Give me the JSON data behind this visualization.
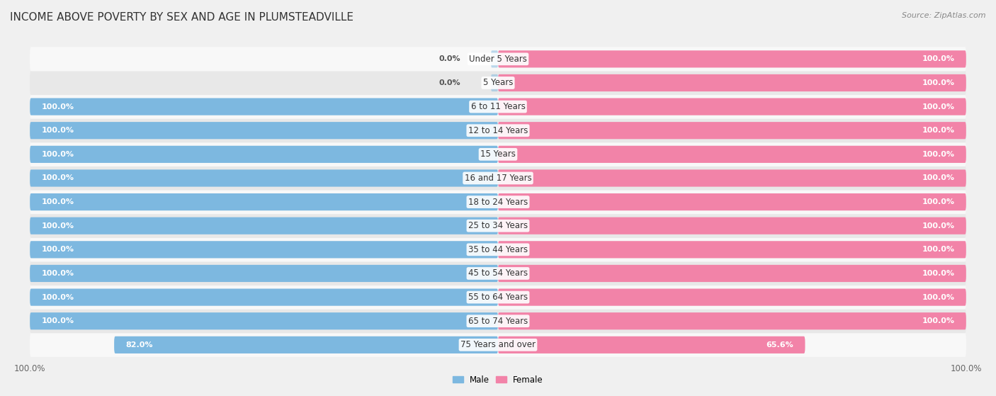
{
  "title": "INCOME ABOVE POVERTY BY SEX AND AGE IN PLUMSTEADVILLE",
  "source": "Source: ZipAtlas.com",
  "categories": [
    "Under 5 Years",
    "5 Years",
    "6 to 11 Years",
    "12 to 14 Years",
    "15 Years",
    "16 and 17 Years",
    "18 to 24 Years",
    "25 to 34 Years",
    "35 to 44 Years",
    "45 to 54 Years",
    "55 to 64 Years",
    "65 to 74 Years",
    "75 Years and over"
  ],
  "male_values": [
    0.0,
    0.0,
    100.0,
    100.0,
    100.0,
    100.0,
    100.0,
    100.0,
    100.0,
    100.0,
    100.0,
    100.0,
    82.0
  ],
  "female_values": [
    100.0,
    100.0,
    100.0,
    100.0,
    100.0,
    100.0,
    100.0,
    100.0,
    100.0,
    100.0,
    100.0,
    100.0,
    65.6
  ],
  "male_color": "#7db8e0",
  "female_color": "#f283a8",
  "male_label": "Male",
  "female_label": "Female",
  "bg_color": "#f0f0f0",
  "row_color_odd": "#e8e8e8",
  "row_color_even": "#f8f8f8",
  "title_fontsize": 11,
  "label_fontsize": 8.5,
  "axis_label_fontsize": 8.5,
  "value_label_fontsize": 8.0
}
